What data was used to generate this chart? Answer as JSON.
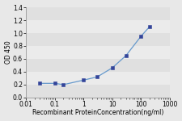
{
  "x": [
    0.03,
    0.1,
    0.2,
    1,
    3,
    10,
    30,
    100,
    200
  ],
  "y": [
    0.22,
    0.22,
    0.2,
    0.27,
    0.32,
    0.46,
    0.65,
    0.95,
    1.1
  ],
  "line_color": "#6699CC",
  "marker_color": "#334499",
  "marker": "s",
  "marker_size": 2.5,
  "xlabel": "Recombinant ProteinConcentration(ng/ml)",
  "ylabel": "OD 450",
  "xlim_log": [
    0.01,
    1000
  ],
  "ylim": [
    0,
    1.4
  ],
  "yticks": [
    0,
    0.2,
    0.4,
    0.6,
    0.8,
    1.0,
    1.2,
    1.4
  ],
  "xticks": [
    0.01,
    0.1,
    1,
    10,
    100,
    1000
  ],
  "xtick_labels": [
    "0.01",
    "0.1",
    "1",
    "10",
    "100",
    "1000"
  ],
  "axis_fontsize": 5.5,
  "tick_fontsize": 5.5,
  "background_color": "#e8e8e8",
  "plot_bg_color": "#e8e8e8",
  "band_colors": [
    "#e0e0e0",
    "#ebebeb"
  ],
  "grid_color": "#ffffff"
}
